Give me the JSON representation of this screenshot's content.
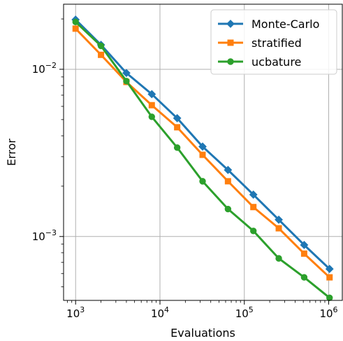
{
  "chart_data": {
    "type": "line",
    "xscale": "log",
    "yscale": "log",
    "xlabel": "Evaluations",
    "ylabel": "Error",
    "xlim": [
      720,
      1450000
    ],
    "ylim": [
      0.000415,
      0.0245
    ],
    "grid": true,
    "legend_position": "top-right",
    "x_ticks": [
      {
        "value": 1000,
        "base": "10",
        "exp": "3"
      },
      {
        "value": 10000,
        "base": "10",
        "exp": "4"
      },
      {
        "value": 100000,
        "base": "10",
        "exp": "5"
      },
      {
        "value": 1000000,
        "base": "10",
        "exp": "6"
      }
    ],
    "y_ticks": [
      {
        "value": 0.001,
        "base": "10",
        "exp": "−3"
      },
      {
        "value": 0.01,
        "base": "10",
        "exp": "−2"
      }
    ],
    "x": [
      1000,
      2000,
      4000,
      8000,
      16000,
      32000,
      64000,
      128000,
      256000,
      512000,
      1024000
    ],
    "series": [
      {
        "name": "Monte-Carlo",
        "color": "#1f77b4",
        "marker": "diamond",
        "values": [
          0.0198,
          0.014,
          0.0095,
          0.0071,
          0.0051,
          0.00345,
          0.0025,
          0.00178,
          0.00126,
          0.00089,
          0.00064
        ]
      },
      {
        "name": "stratified",
        "color": "#ff7f0e",
        "marker": "square",
        "values": [
          0.0175,
          0.0122,
          0.0084,
          0.0061,
          0.0045,
          0.00308,
          0.00214,
          0.0015,
          0.00112,
          0.00079,
          0.00057
        ]
      },
      {
        "name": "ucbature",
        "color": "#2ca02c",
        "marker": "circle",
        "values": [
          0.0192,
          0.0138,
          0.0085,
          0.0052,
          0.0034,
          0.00214,
          0.00146,
          0.00108,
          0.00074,
          0.00057,
          0.00043
        ]
      }
    ]
  }
}
